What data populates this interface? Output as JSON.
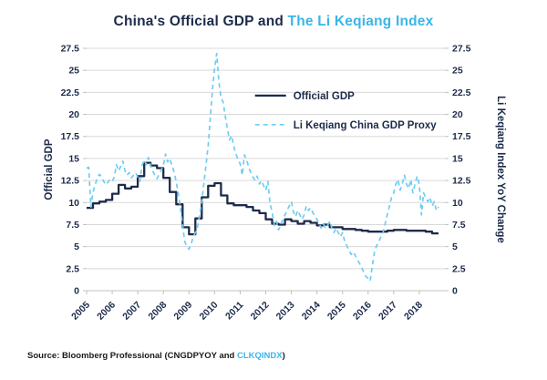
{
  "title": {
    "part1": "China's Official GDP and ",
    "part2": "The Li Keqiang Index"
  },
  "source": {
    "prefix": "Source: Bloomberg Professional (CNGDPYOY and ",
    "link": "CLKQINDX",
    "suffix": ")"
  },
  "colors": {
    "navy": "#1c2b4a",
    "blue": "#3ab6e8",
    "blue_line": "#6fcdf3",
    "grid": "#d9d9d9",
    "axis": "#c0c0c0",
    "source_text": "#1a1a1a"
  },
  "chart_data": {
    "type": "line",
    "title": "China's Official GDP and The Li Keqiang Index",
    "ylabel_left": "Official GDP",
    "ylabel_right": "Li Keqiang Index YoY Change",
    "ylim": [
      0,
      27.5
    ],
    "ytick_step": 2.5,
    "xlim": [
      2005,
      2019
    ],
    "xticks": [
      2005,
      2006,
      2007,
      2008,
      2009,
      2010,
      2011,
      2012,
      2013,
      2014,
      2015,
      2016,
      2017,
      2018
    ],
    "grid": true,
    "legend_position": "upper-center-inside",
    "series": [
      {
        "name": "Official GDP",
        "style": "solid",
        "step": true,
        "color_key": "navy",
        "width": 2.3,
        "x_start": 2005.0,
        "x_step": 0.25,
        "values": [
          9.4,
          9.9,
          10.1,
          10.3,
          11.0,
          12.0,
          11.6,
          11.8,
          13.0,
          14.5,
          14.2,
          13.9,
          12.8,
          11.2,
          9.8,
          7.2,
          6.4,
          8.2,
          10.6,
          11.9,
          12.2,
          10.8,
          9.9,
          9.7,
          9.7,
          9.5,
          9.1,
          8.8,
          8.1,
          7.6,
          7.5,
          8.1,
          7.9,
          7.6,
          7.9,
          7.7,
          7.4,
          7.5,
          7.2,
          7.2,
          7.0,
          7.0,
          6.9,
          6.8,
          6.7,
          6.7,
          6.7,
          6.8,
          6.9,
          6.9,
          6.8,
          6.8,
          6.8,
          6.7,
          6.5
        ]
      },
      {
        "name": "Li Keqiang China GDP Proxy",
        "style": "dashed",
        "step": false,
        "color_key": "blue_line",
        "width": 1.7,
        "dash": "5 4",
        "x_start": 2005.0,
        "x_step": 0.083333,
        "values": [
          13.9,
          14.0,
          9.5,
          11.2,
          12.0,
          12.8,
          13.2,
          12.9,
          12.4,
          12.0,
          12.3,
          12.6,
          12.4,
          12.9,
          14.3,
          13.6,
          14.1,
          14.7,
          13.6,
          13.1,
          13.4,
          12.8,
          13.1,
          13.4,
          12.9,
          12.4,
          14.2,
          14.8,
          14.3,
          15.1,
          14.2,
          13.6,
          13.1,
          12.7,
          13.2,
          13.7,
          14.2,
          15.5,
          14.6,
          15.0,
          14.2,
          13.5,
          12.4,
          11.0,
          9.4,
          7.4,
          5.6,
          5.0,
          4.7,
          5.3,
          6.1,
          6.6,
          7.2,
          8.6,
          10.1,
          12.2,
          14.3,
          16.4,
          19.6,
          22.8,
          25.2,
          26.9,
          23.8,
          21.9,
          21.4,
          19.8,
          18.4,
          17.1,
          17.6,
          16.4,
          15.5,
          14.9,
          14.4,
          13.1,
          15.4,
          14.9,
          14.0,
          13.4,
          12.9,
          12.5,
          13.0,
          12.1,
          12.5,
          11.9,
          11.4,
          12.4,
          9.9,
          8.9,
          7.4,
          7.9,
          6.9,
          7.4,
          8.1,
          8.6,
          9.1,
          9.6,
          10.1,
          8.9,
          8.4,
          9.1,
          8.6,
          8.1,
          8.6,
          9.6,
          9.1,
          9.4,
          8.9,
          8.4,
          8.1,
          7.6,
          7.1,
          7.6,
          7.1,
          7.4,
          7.9,
          7.1,
          6.6,
          7.1,
          6.6,
          6.1,
          6.6,
          5.6,
          5.1,
          4.6,
          4.1,
          4.4,
          4.0,
          3.5,
          3.1,
          2.6,
          2.1,
          1.6,
          1.4,
          1.1,
          2.9,
          4.4,
          5.1,
          5.6,
          6.1,
          6.6,
          7.6,
          8.6,
          9.6,
          10.6,
          11.1,
          12.1,
          12.6,
          11.4,
          12.1,
          13.1,
          12.1,
          11.6,
          12.6,
          11.1,
          12.1,
          13.0,
          12.1,
          8.6,
          11.1,
          10.6,
          10.1,
          10.6,
          9.6,
          10.1,
          9.1,
          9.5
        ]
      }
    ]
  }
}
